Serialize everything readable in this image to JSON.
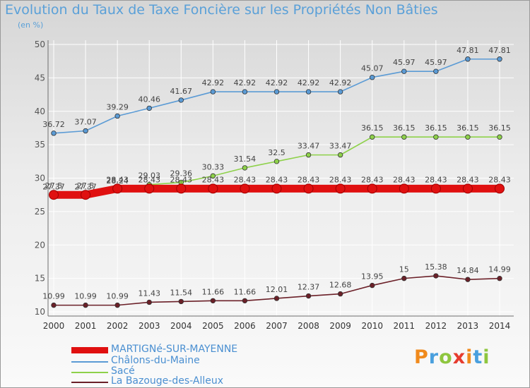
{
  "chart": {
    "title": "Evolution du Taux de Taxe Foncière sur les Propriétés Non Bâties",
    "unit": "(en %)"
  },
  "brand": "Proxiti",
  "colors": {
    "title": "#5aa0d8",
    "legend_text": "#4a8fd1",
    "grid": "#ffffff",
    "axis": "#6f6f6f"
  },
  "chart_data": {
    "type": "line",
    "title": "Evolution du Taux de Taxe Foncière sur les Propriétés Non Bâties",
    "ylabel": "(en %)",
    "x": [
      "2000",
      "2001",
      "2002",
      "2003",
      "2004",
      "2005",
      "2006",
      "2007",
      "2008",
      "2009",
      "2010",
      "2011",
      "2012",
      "2013",
      "2014"
    ],
    "ylim": [
      10,
      50
    ],
    "yticks": [
      10,
      15,
      20,
      25,
      30,
      35,
      40,
      45,
      50
    ],
    "grid": true,
    "legend_position": "bottom-left",
    "series": [
      {
        "name": "MARTIGNé-SUR-MAYENNE",
        "color": "#e01010",
        "values": [
          27.5,
          27.5,
          28.43,
          28.43,
          28.43,
          28.43,
          28.43,
          28.43,
          28.43,
          28.43,
          28.43,
          28.43,
          28.43,
          28.43,
          28.43
        ],
        "labels": [
          "27.5",
          "27.5",
          "28.43",
          "28.43",
          "28.43",
          "28.43",
          "28.43",
          "28.43",
          "28.43",
          "28.43",
          "28.43",
          "28.43",
          "28.43",
          "28.43",
          "28.43"
        ]
      },
      {
        "name": "Châlons-du-Maine",
        "color": "#5b9bd5",
        "values": [
          36.72,
          37.07,
          39.29,
          40.46,
          41.67,
          42.92,
          42.92,
          42.92,
          42.92,
          42.92,
          45.07,
          45.97,
          45.97,
          47.81,
          47.81
        ],
        "labels": [
          "36.72",
          "37.07",
          "39.29",
          "40.46",
          "41.67",
          "42.92",
          "42.92",
          "42.92",
          "42.92",
          "42.92",
          "45.07",
          "45.97",
          "45.97",
          "47.81",
          "47.81"
        ]
      },
      {
        "name": "Sacé",
        "color": "#8ed14a",
        "values": [
          27.37,
          27.37,
          28.24,
          29.03,
          29.36,
          30.33,
          31.54,
          32.5,
          33.47,
          33.47,
          36.15,
          36.15,
          36.15,
          36.15,
          36.15
        ],
        "labels": [
          "27.37",
          "27.37",
          "28.24",
          "29.03",
          "29.36",
          "30.33",
          "31.54",
          "32.5",
          "33.47",
          "33.47",
          "36.15",
          "36.15",
          "36.15",
          "36.15",
          "36.15"
        ]
      },
      {
        "name": "La Bazouge-des-Alleux",
        "color": "#6b2028",
        "values": [
          10.99,
          10.99,
          10.99,
          11.43,
          11.54,
          11.66,
          11.66,
          12.01,
          12.37,
          12.68,
          13.95,
          15,
          15.38,
          14.84,
          14.99
        ],
        "labels": [
          "10.99",
          "10.99",
          "10.99",
          "11.43",
          "11.54",
          "11.66",
          "11.66",
          "12.01",
          "12.37",
          "12.68",
          "13.95",
          "15",
          "15.38",
          "14.84",
          "14.99"
        ]
      }
    ]
  }
}
